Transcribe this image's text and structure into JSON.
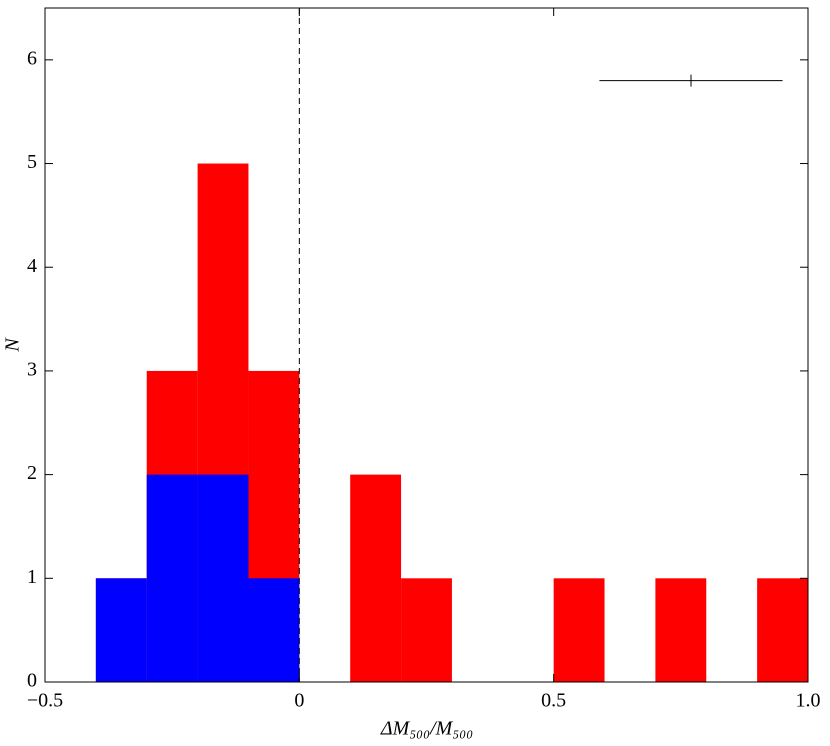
{
  "chart_data": {
    "type": "histogram",
    "xlabel": "ΔM₅₀₀/M₅₀₀",
    "ylabel": "N",
    "bins": [
      -0.4,
      -0.3,
      -0.2,
      -0.1,
      0,
      0.1,
      0.2,
      0.3,
      0.4,
      0.5,
      0.6,
      0.7,
      0.8,
      0.9,
      1.0
    ],
    "series": [
      {
        "color": "#ff0000",
        "values": [
          1,
          3,
          5,
          3,
          0,
          2,
          1,
          0,
          0,
          1,
          0,
          1,
          0,
          1
        ]
      },
      {
        "color": "#0000ff",
        "values": [
          1,
          2,
          2,
          1,
          0,
          0,
          0,
          0,
          0,
          0,
          0,
          0,
          0,
          0
        ]
      }
    ],
    "xlim": [
      -0.5,
      1.0
    ],
    "xticks": [
      {
        "value": -0.5,
        "label": "−0.5"
      },
      0,
      0.5,
      {
        "value": 1.0,
        "label": "1.0"
      }
    ],
    "ylim": [
      0,
      6.5
    ],
    "yticks": [
      0,
      1,
      2,
      3,
      4,
      5,
      6
    ],
    "vline": 0,
    "error_bar": {
      "x": 0.77,
      "xerr": 0.18,
      "y": 5.8
    }
  }
}
